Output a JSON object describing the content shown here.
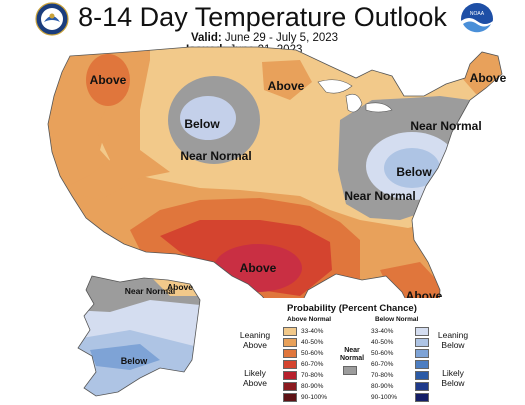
{
  "header": {
    "title": "8-14 Day Temperature Outlook",
    "valid_label": "Valid:",
    "valid_value": "June 29 - July 5, 2023",
    "issued_label": "Issued:",
    "issued_value": "June 21, 2023"
  },
  "logos": {
    "left": "department-of-commerce-seal",
    "right_text": "NOAA"
  },
  "map_labels": {
    "above_northwest": "Above",
    "below_north_central": "Below",
    "near_normal_north_central": "Near Normal",
    "above_great_lakes": "Above",
    "above_maine": "Above",
    "near_normal_northeast": "Near Normal",
    "below_mid_atlantic": "Below",
    "near_normal_appalachia": "Near Normal",
    "above_texas": "Above",
    "above_florida": "Above",
    "near_normal_alaska": "Near Normal",
    "above_alaska": "Above",
    "below_alaska": "Below"
  },
  "legend": {
    "title": "Probability (Percent Chance)",
    "above_header": "Above Normal",
    "below_header": "Below Normal",
    "near_normal": "Near Normal",
    "leaning_above": "Leaning Above",
    "likely_above": "Likely Above",
    "leaning_below": "Leaning Below",
    "likely_below": "Likely Below",
    "ranges": [
      "33-40%",
      "40-50%",
      "50-60%",
      "60-70%",
      "70-80%",
      "80-90%",
      "90-100%"
    ],
    "above_colors": [
      "#f2c98a",
      "#e8a15b",
      "#e0763c",
      "#d4442f",
      "#b7202c",
      "#8b1a1f",
      "#5e1215"
    ],
    "below_colors": [
      "#d4ddf0",
      "#aec4e4",
      "#7ea3d6",
      "#4d7ec2",
      "#2b5aa5",
      "#1f3a8a",
      "#141e66"
    ],
    "near_normal_color": "#9c9c9c"
  }
}
